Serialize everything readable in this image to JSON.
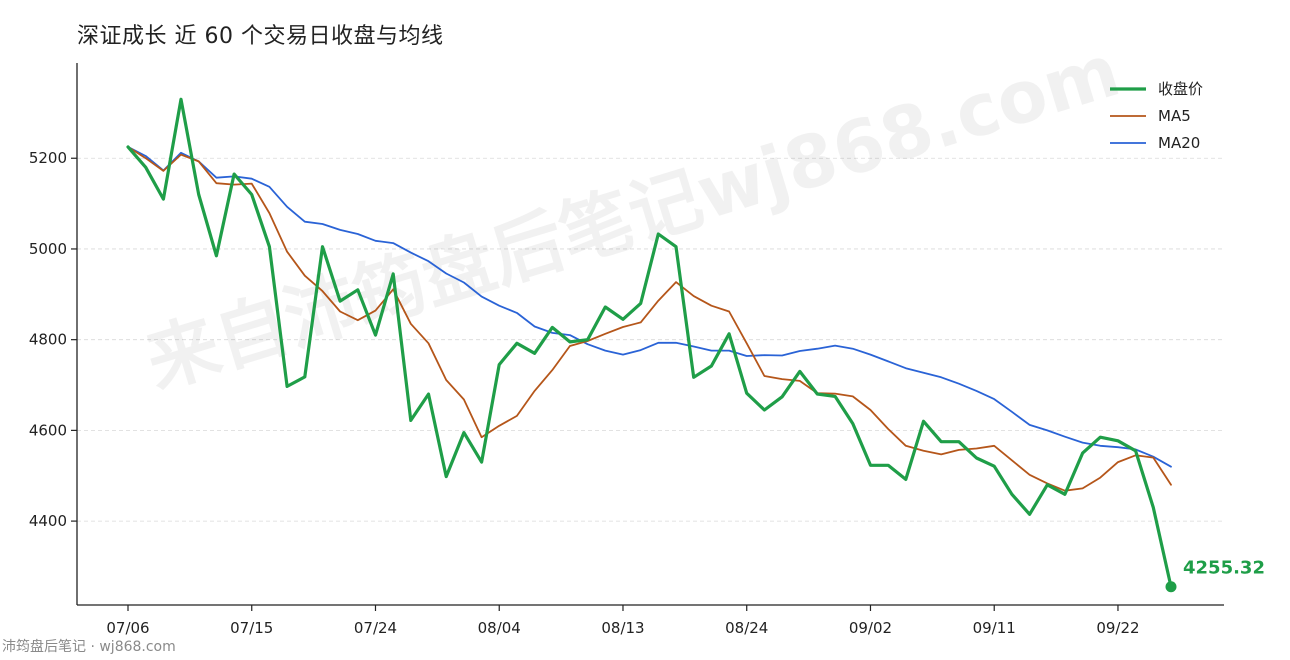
{
  "chart_data": {
    "type": "line",
    "title": "深证成长 近 60 个交易日收盘与均线",
    "xlabel": "",
    "ylabel": "",
    "ylim": [
      4215,
      5410
    ],
    "yticks": [
      4400,
      4600,
      4800,
      5000,
      5200
    ],
    "x_tick_labels": [
      {
        "label": "07/06",
        "index": 0
      },
      {
        "label": "07/15",
        "index": 7
      },
      {
        "label": "07/24",
        "index": 14
      },
      {
        "label": "08/04",
        "index": 21
      },
      {
        "label": "08/13",
        "index": 28
      },
      {
        "label": "08/24",
        "index": 35
      },
      {
        "label": "09/02",
        "index": 42
      },
      {
        "label": "09/11",
        "index": 49
      },
      {
        "label": "09/22",
        "index": 56
      }
    ],
    "n_points": 60,
    "grid": "horizontal-dashed",
    "legend_position": "top-right",
    "series": [
      {
        "name": "收盘价",
        "color": "#1f9e48",
        "values": [
          5225,
          5180,
          5110,
          5330,
          5120,
          4985,
          5165,
          5120,
          5005,
          4697,
          4718,
          5005,
          4885,
          4910,
          4810,
          4945,
          4622,
          4680,
          4498,
          4595,
          4530,
          4745,
          4792,
          4770,
          4827,
          4795,
          4800,
          4872,
          4845,
          4880,
          5033,
          5005,
          4717,
          4742,
          4813,
          4682,
          4645,
          4674,
          4730,
          4680,
          4675,
          4615,
          4523,
          4523,
          4492,
          4620,
          4575,
          4575,
          4539,
          4521,
          4459,
          4415,
          4480,
          4459,
          4550,
          4585,
          4577,
          4555,
          4430,
          4255.32
        ]
      },
      {
        "name": "MA5",
        "color": "#b5561a",
        "values": [
          5225,
          5200,
          5172,
          5208,
          5193,
          5145,
          5142,
          5144,
          5079,
          4994,
          4941,
          4907,
          4862,
          4843,
          4864,
          4911,
          4835,
          4792,
          4711,
          4668,
          4585,
          4610,
          4632,
          4687,
          4733,
          4786,
          4797,
          4813,
          4828,
          4838,
          4886,
          4927,
          4896,
          4875,
          4862,
          4792,
          4720,
          4713,
          4709,
          4682,
          4681,
          4675,
          4645,
          4603,
          4566,
          4555,
          4547,
          4557,
          4560,
          4566,
          4534,
          4502,
          4483,
          4467,
          4472,
          4496,
          4530,
          4545,
          4540,
          4480
        ]
      },
      {
        "name": "MA20",
        "color": "#2a63d6",
        "values": [
          5225,
          5205,
          5173,
          5212,
          5193,
          5157,
          5160,
          5155,
          5137,
          5093,
          5060,
          5055,
          5042,
          5033,
          5018,
          5013,
          4992,
          4973,
          4946,
          4926,
          4895,
          4875,
          4859,
          4829,
          4815,
          4810,
          4790,
          4776,
          4767,
          4777,
          4793,
          4793,
          4785,
          4776,
          4776,
          4764,
          4766,
          4765,
          4775,
          4780,
          4787,
          4780,
          4767,
          4752,
          4737,
          4727,
          4717,
          4703,
          4687,
          4669,
          4641,
          4612,
          4600,
          4586,
          4573,
          4566,
          4563,
          4558,
          4542,
          4520
        ]
      }
    ],
    "last_value_label": "4255.32",
    "watermark": "来自沛筠盘后笔记wj868.com"
  },
  "footer": "沛筠盘后笔记 · wj868.com"
}
